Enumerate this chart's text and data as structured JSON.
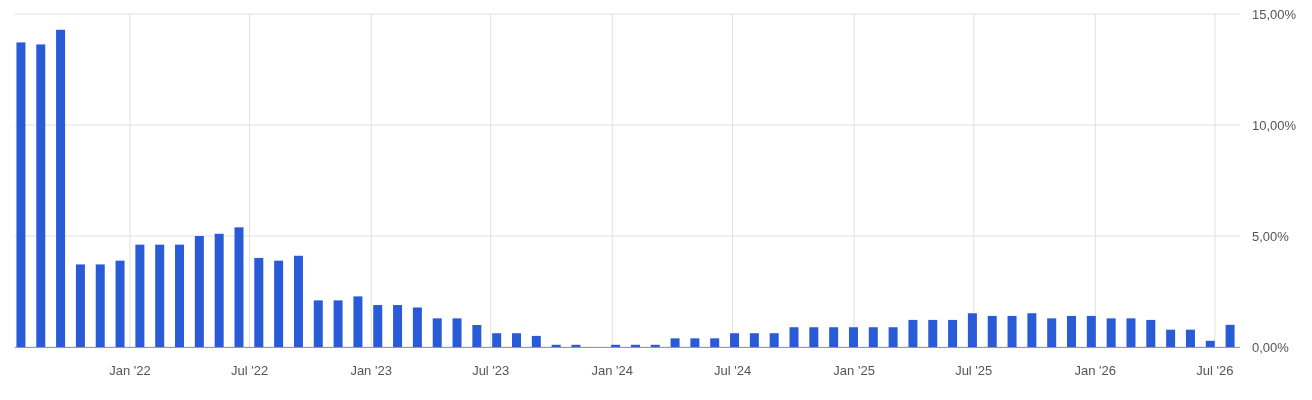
{
  "chart_data": {
    "type": "bar",
    "x": [
      "2021-07-20",
      "2021-08-19",
      "2021-09-18",
      "2021-10-18",
      "2021-11-17",
      "2021-12-17",
      "2022-01-16",
      "2022-02-15",
      "2022-03-17",
      "2022-04-16",
      "2022-05-16",
      "2022-06-15",
      "2022-07-15",
      "2022-08-14",
      "2022-09-13",
      "2022-10-13",
      "2022-11-12",
      "2022-12-12",
      "2023-01-11",
      "2023-02-10",
      "2023-03-12",
      "2023-04-11",
      "2023-05-11",
      "2023-06-10",
      "2023-07-10",
      "2023-08-09",
      "2023-09-08",
      "2023-10-08",
      "2023-11-07",
      "2023-12-07",
      "2024-01-06",
      "2024-02-05",
      "2024-03-06",
      "2024-04-05",
      "2024-05-05",
      "2024-06-04",
      "2024-07-04",
      "2024-08-03",
      "2024-09-02",
      "2024-10-02",
      "2024-11-01",
      "2024-12-01",
      "2024-12-31",
      "2025-01-30",
      "2025-03-01",
      "2025-03-31",
      "2025-04-30",
      "2025-05-30",
      "2025-06-29",
      "2025-07-29",
      "2025-08-28",
      "2025-09-27",
      "2025-10-27",
      "2025-11-26",
      "2025-12-26",
      "2026-01-25",
      "2026-02-24",
      "2026-03-26",
      "2026-04-25",
      "2026-05-25",
      "2026-06-24",
      "2026-07-24"
    ],
    "values": [
      13.72,
      13.63,
      14.29,
      3.72,
      3.72,
      3.89,
      4.61,
      4.61,
      4.61,
      5.0,
      5.1,
      5.39,
      4.01,
      3.89,
      4.11,
      2.1,
      2.1,
      2.28,
      1.89,
      1.89,
      1.78,
      1.29,
      1.29,
      0.99,
      0.62,
      0.62,
      0.5,
      0.1,
      0.1,
      0,
      0.1,
      0.1,
      0.1,
      0.39,
      0.39,
      0.39,
      0.62,
      0.62,
      0.62,
      0.89,
      0.89,
      0.89,
      0.89,
      0.89,
      0.89,
      1.22,
      1.22,
      1.22,
      1.52,
      1.4,
      1.4,
      1.52,
      1.29,
      1.4,
      1.4,
      1.29,
      1.29,
      1.22,
      0.78,
      0.78,
      0.28,
      1.0
    ],
    "color": "#2a5bd7",
    "xlim": [
      "2021-07-11",
      "2026-08-08"
    ],
    "xticks": [
      {
        "value": "2022-01-01",
        "label": "Jan '22"
      },
      {
        "value": "2022-07-01",
        "label": "Jul '22"
      },
      {
        "value": "2023-01-01",
        "label": "Jan '23"
      },
      {
        "value": "2023-07-01",
        "label": "Jul '23"
      },
      {
        "value": "2024-01-01",
        "label": "Jan '24"
      },
      {
        "value": "2024-07-01",
        "label": "Jul '24"
      },
      {
        "value": "2025-01-01",
        "label": "Jan '25"
      },
      {
        "value": "2025-07-01",
        "label": "Jul '25"
      },
      {
        "value": "2026-01-01",
        "label": "Jan '26"
      },
      {
        "value": "2026-07-01",
        "label": "Jul '26"
      }
    ],
    "ylim": [
      0,
      15
    ],
    "yticks": [
      {
        "value": 0,
        "label": "0,00%"
      },
      {
        "value": 5,
        "label": "5,00%"
      },
      {
        "value": 10,
        "label": "10,00%"
      },
      {
        "value": 15,
        "label": "15,00%"
      }
    ],
    "grid": true
  }
}
